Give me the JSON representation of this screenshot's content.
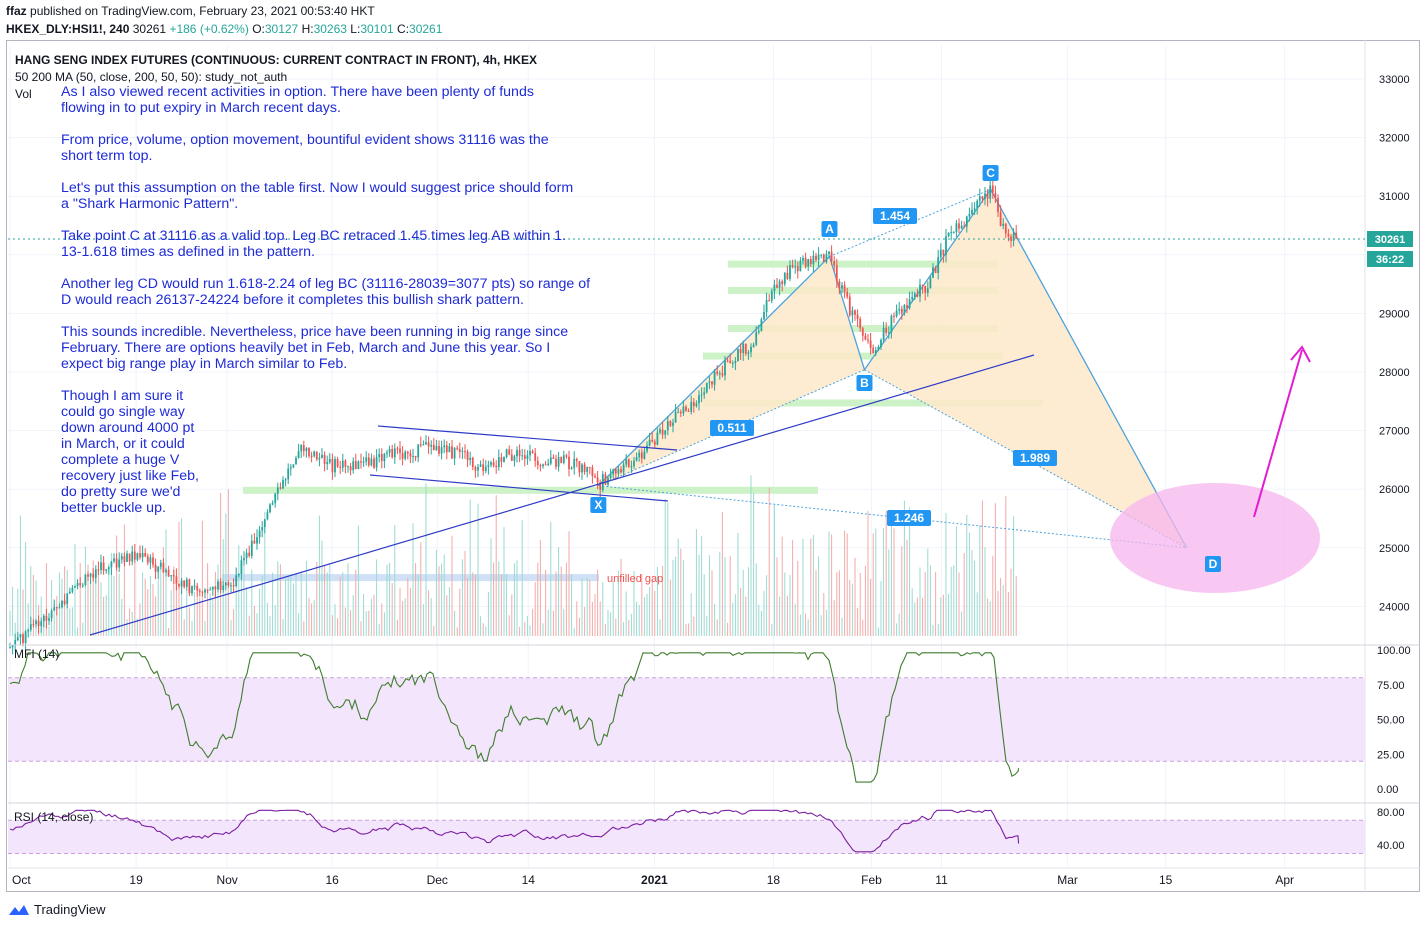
{
  "header": {
    "publisher": "ffaz",
    "published_text": "published on TradingView.com, February 23, 2021 00:53:40 HKT",
    "symbol": "HKEX_DLY:HSI1!, 240",
    "last": "30261",
    "change": "+186 (+0.62%)",
    "ohlc": {
      "o_label": "O:",
      "o": "30127",
      "h_label": "H:",
      "h": "30263",
      "l_label": "L:",
      "l": "30101",
      "c_label": "C:",
      "c": "30261"
    }
  },
  "legend": {
    "title": "HANG SENG INDEX FUTURES (CONTINUOUS: CURRENT CONTRACT IN FRONT), 4h, HKEX",
    "ma": "50 200 MA (50, close, 200, 50, 50): study_not_auth",
    "vol": "Vol"
  },
  "note": {
    "lines": [
      "As I also viewed recent activities in option. There have been plenty of funds",
      "flowing in to put expiry in March recent days.",
      "",
      "From price, volume, option movement, bountiful evident shows 31116 was the",
      "short term top.",
      "",
      "Let's put this assumption on the table first. Now I would suggest price should form",
      "a \"Shark Harmonic Pattern\".",
      "",
      "Take point C at 31116 as a valid top. Leg BC retraced 1.45 times leg AB within 1.",
      "13-1.618 times as defined in the pattern.",
      "",
      "Another leg CD would run 1.618-2.24 of leg BC (31116-28039=3077 pts) so range of",
      "D would reach 26137-24224 before it completes this bullish shark pattern.",
      "",
      "This sounds incredible. Nevertheless, price have been running in big range since",
      "February. There are options heavily bet in Feb, March and June this year. So I",
      "expect big range play in March similar to Feb.",
      "",
      "Though I am sure it",
      "could go single way",
      "down around 4000 pt",
      "in March, or it could",
      "complete a huge V",
      "recovery just like Feb,",
      "do pretty sure we'd",
      "better buckle up."
    ]
  },
  "chart_data": {
    "type": "line",
    "title": "HANG SENG INDEX FUTURES (CONTINUOUS: CURRENT CONTRACT IN FRONT), 4h, HKEX",
    "x_ticks": [
      "Oct",
      "19",
      "Nov",
      "16",
      "Dec",
      "14",
      "2021",
      "18",
      "Feb",
      "11",
      "Mar",
      "15",
      "Apr"
    ],
    "y_ticks": [
      24000,
      25000,
      26000,
      27000,
      28000,
      29000,
      30000,
      31000,
      32000,
      33000
    ],
    "ylim": [
      23700,
      33300
    ],
    "price_series": {
      "name": "HSI1! 4h close (approx.)",
      "points": [
        [
          "Oct 1",
          23300
        ],
        [
          "Oct 9",
          24100
        ],
        [
          "Oct 13",
          24600
        ],
        [
          "Oct 19",
          24900
        ],
        [
          "Oct 23",
          24600
        ],
        [
          "Oct 27",
          24300
        ],
        [
          "Nov 2",
          24400
        ],
        [
          "Nov 5",
          25200
        ],
        [
          "Nov 9",
          26100
        ],
        [
          "Nov 11",
          26700
        ],
        [
          "Nov 16",
          26400
        ],
        [
          "Nov 20",
          26400
        ],
        [
          "Nov 25",
          26600
        ],
        [
          "Nov 30",
          26700
        ],
        [
          "Dec 4",
          26600
        ],
        [
          "Dec 8",
          26300
        ],
        [
          "Dec 11",
          26600
        ],
        [
          "Dec 16",
          26500
        ],
        [
          "Dec 19",
          26500
        ],
        [
          "Dec 23",
          26300
        ],
        [
          "Dec 24",
          26080
        ],
        [
          "Dec 30",
          26600
        ],
        [
          "Jan 4",
          27200
        ],
        [
          "Jan 8",
          27700
        ],
        [
          "Jan 12",
          28200
        ],
        [
          "Jan 15",
          28500
        ],
        [
          "Jan 18",
          29400
        ],
        [
          "Jan 21",
          29800
        ],
        [
          "Jan 26",
          29950
        ],
        [
          "Jan 28",
          29300
        ],
        [
          "Feb 1",
          28300
        ],
        [
          "Feb 3",
          28700
        ],
        [
          "Feb 6",
          29200
        ],
        [
          "Feb 9",
          29500
        ],
        [
          "Feb 12",
          30300
        ],
        [
          "Feb 15",
          30700
        ],
        [
          "Feb 18",
          31116
        ],
        [
          "Feb 20",
          30400
        ],
        [
          "Feb 22",
          30261
        ]
      ]
    },
    "harmonic_pattern": {
      "points": {
        "X": [
          "Dec 24",
          26060
        ],
        "A": [
          "Jan 26",
          29970
        ],
        "B": [
          "Jan 31",
          28039
        ],
        "C": [
          "Feb 18",
          31116
        ],
        "D": [
          "Mar 18",
          25000
        ]
      },
      "ratios": {
        "XB": "0.511",
        "AC": "1.454",
        "BD": "1.989",
        "XD": "1.246"
      }
    },
    "annotations": {
      "gap_label": "unfilled gap",
      "price_badge": "30261",
      "timer_badge": "36:22"
    },
    "mfi": {
      "label": "MFI (14)",
      "y_ticks": [
        "100.00",
        "75.00",
        "50.00",
        "25.00",
        "0.00"
      ],
      "ylim": [
        0,
        100
      ],
      "band": [
        20,
        80
      ],
      "last": 15
    },
    "rsi": {
      "label": "RSI (14, close)",
      "y_ticks": [
        "80.00",
        "40.00"
      ],
      "ylim": [
        30,
        85
      ],
      "band": [
        30,
        70
      ],
      "last": 42
    }
  },
  "colors": {
    "bull": "#26a69a",
    "bear": "#ef5350",
    "note_text": "#1f2bd6",
    "pattern_line": "#4da3dc",
    "pattern_fill": "#fde9c9",
    "magenta": "#e21ccf",
    "mfi_line": "#3f7d2d",
    "rsi_line": "#7b1fa2"
  },
  "footer": {
    "brand": "TradingView"
  }
}
